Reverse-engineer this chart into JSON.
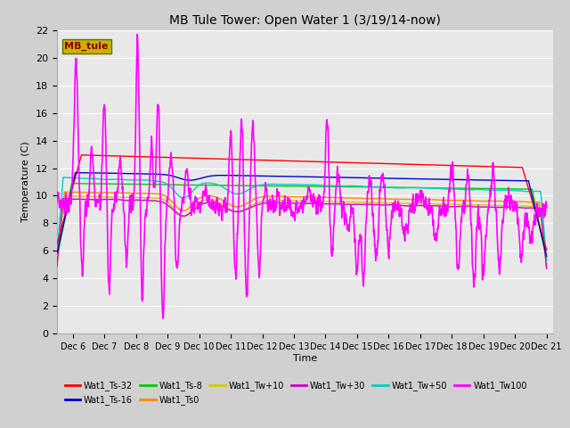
{
  "title": "MB Tule Tower: Open Water 1 (3/19/14-now)",
  "xlabel": "Time",
  "ylabel": "Temperature (C)",
  "ylim": [
    0,
    22
  ],
  "yticks": [
    0,
    2,
    4,
    6,
    8,
    10,
    12,
    14,
    16,
    18,
    20,
    22
  ],
  "fig_bg": "#d0d0d0",
  "plot_bg": "#e8e8e8",
  "legend_box_label": "MB_tule",
  "legend_box_facecolor": "#c8b400",
  "legend_box_edgecolor": "#6b6b00",
  "legend_box_text_color": "#8b0000",
  "series": [
    {
      "name": "Wat1_Ts-32",
      "color": "#ff0000"
    },
    {
      "name": "Wat1_Ts-16",
      "color": "#0000cc"
    },
    {
      "name": "Wat1_Ts-8",
      "color": "#00cc00"
    },
    {
      "name": "Wat1_Ts0",
      "color": "#ff8800"
    },
    {
      "name": "Wat1_Tw+10",
      "color": "#cccc00"
    },
    {
      "name": "Wat1_Tw+30",
      "color": "#cc00cc"
    },
    {
      "name": "Wat1_Tw+50",
      "color": "#00cccc"
    },
    {
      "name": "Wat1_Tw100",
      "color": "#ff00ff"
    }
  ],
  "x_ticks": [
    6,
    7,
    8,
    9,
    10,
    11,
    12,
    13,
    14,
    15,
    16,
    17,
    18,
    19,
    20,
    21
  ],
  "x_tick_labels": [
    "Dec 6",
    "Dec 7",
    "Dec 8",
    "Dec 9",
    "Dec 10",
    "Dec 11",
    "Dec 12",
    "Dec 13",
    "Dec 14",
    "Dec 15",
    "Dec 16",
    "Dec 17",
    "Dec 18",
    "Dec 19",
    "Dec 20",
    "Dec 21"
  ],
  "grid_color": "#ffffff",
  "line_width": 1.0
}
